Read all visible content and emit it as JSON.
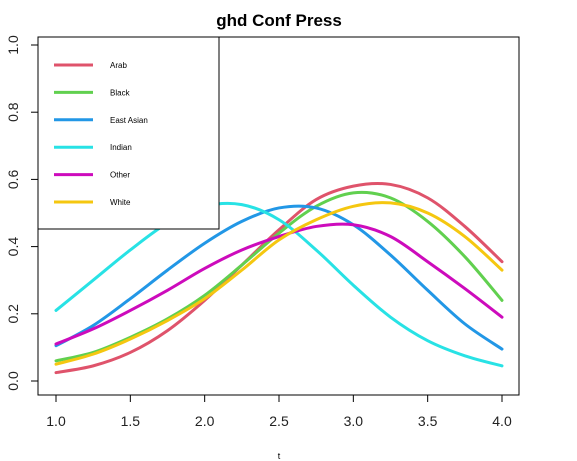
{
  "chart_data": {
    "type": "line",
    "title": "ghd Conf Press",
    "xlabel": "t",
    "ylabel": "",
    "xlim": [
      1.0,
      4.0
    ],
    "ylim": [
      0.0,
      1.0
    ],
    "xticks": [
      "1.0",
      "1.5",
      "2.0",
      "2.5",
      "3.0",
      "3.5",
      "4.0"
    ],
    "yticks": [
      "0.0",
      "0.2",
      "0.4",
      "0.6",
      "0.8",
      "1.0"
    ],
    "grid": false,
    "legend_position": "top-left",
    "x": [
      1.0,
      1.25,
      1.5,
      1.75,
      2.0,
      2.25,
      2.5,
      2.75,
      3.0,
      3.25,
      3.5,
      3.75,
      4.0
    ],
    "series": [
      {
        "name": "Arab",
        "color": "#DF536B",
        "values": [
          0.025,
          0.045,
          0.085,
          0.15,
          0.24,
          0.345,
          0.45,
          0.54,
          0.58,
          0.585,
          0.545,
          0.46,
          0.355
        ]
      },
      {
        "name": "Black",
        "color": "#61D04F",
        "values": [
          0.06,
          0.085,
          0.13,
          0.185,
          0.255,
          0.345,
          0.44,
          0.52,
          0.56,
          0.545,
          0.475,
          0.37,
          0.24
        ]
      },
      {
        "name": "East Asian",
        "color": "#2297E6",
        "values": [
          0.105,
          0.165,
          0.245,
          0.33,
          0.41,
          0.475,
          0.515,
          0.515,
          0.465,
          0.375,
          0.27,
          0.17,
          0.095
        ]
      },
      {
        "name": "Indian",
        "color": "#28E2E5",
        "values": [
          0.21,
          0.3,
          0.39,
          0.47,
          0.52,
          0.525,
          0.48,
          0.39,
          0.285,
          0.19,
          0.12,
          0.075,
          0.045
        ]
      },
      {
        "name": "Other",
        "color": "#CD0BBC",
        "values": [
          0.11,
          0.155,
          0.21,
          0.27,
          0.335,
          0.39,
          0.43,
          0.46,
          0.465,
          0.43,
          0.355,
          0.275,
          0.19
        ]
      },
      {
        "name": "White",
        "color": "#F5C710",
        "values": [
          0.05,
          0.08,
          0.125,
          0.18,
          0.245,
          0.33,
          0.42,
          0.48,
          0.52,
          0.53,
          0.5,
          0.43,
          0.33
        ]
      }
    ]
  }
}
